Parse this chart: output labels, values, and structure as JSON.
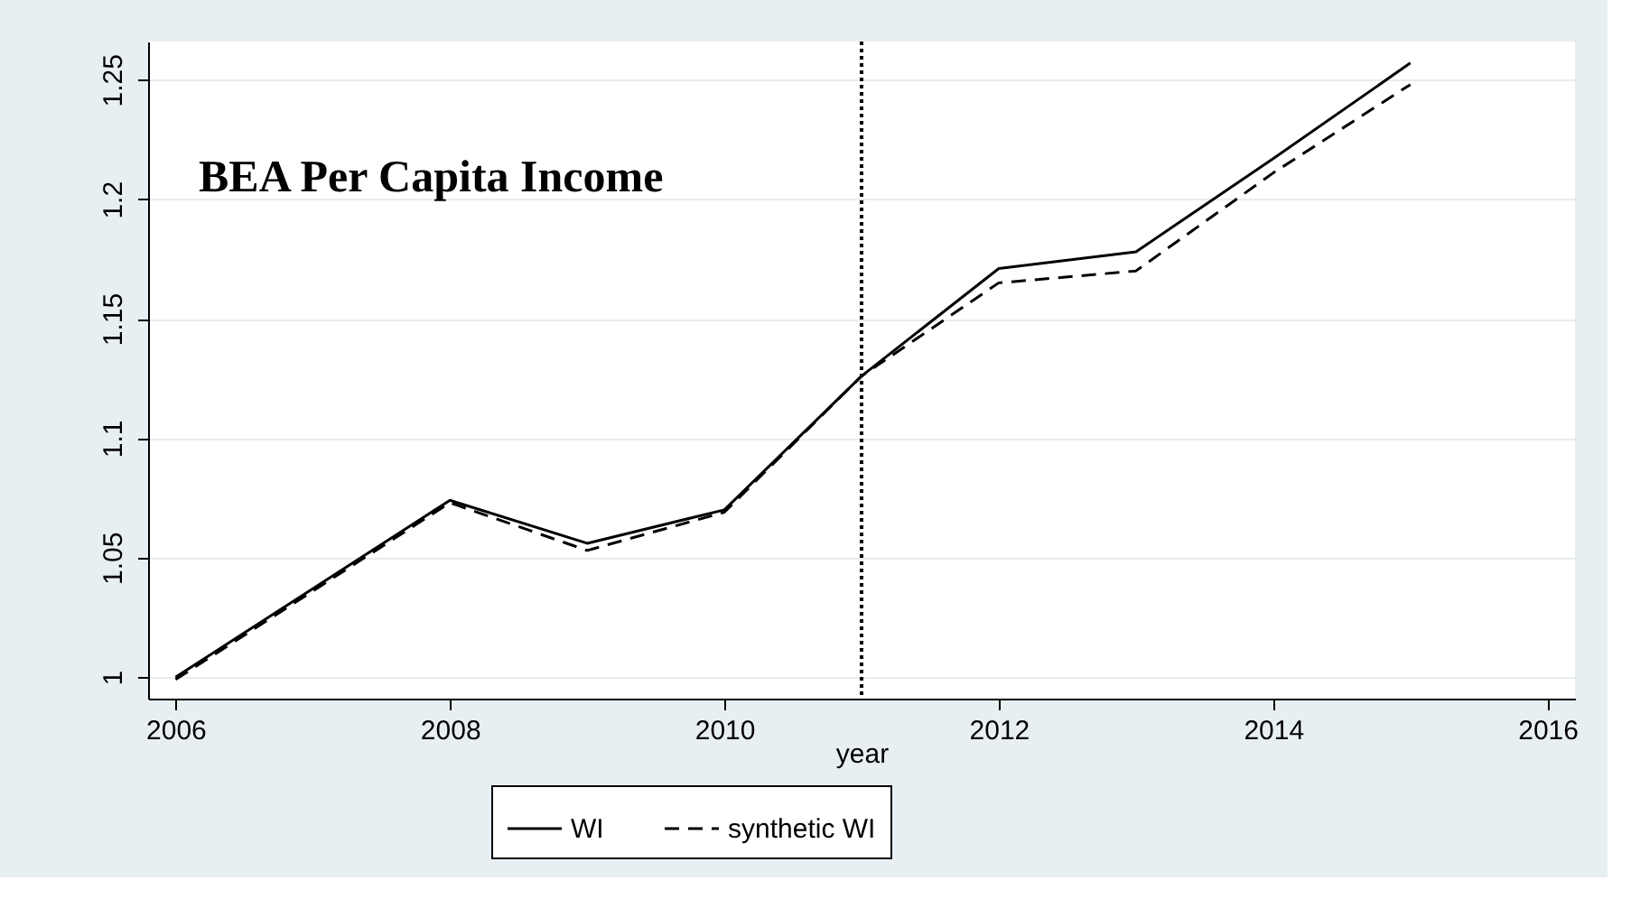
{
  "chart_data": {
    "type": "line",
    "title": "BEA Per Capita Income",
    "xlabel": "year",
    "x": [
      2006,
      2007,
      2008,
      2009,
      2010,
      2011,
      2012,
      2013,
      2014,
      2015
    ],
    "series": [
      {
        "name": "WI",
        "color": "#000000",
        "line_style": "solid",
        "values": [
          1.0,
          1.037,
          1.074,
          1.056,
          1.07,
          1.126,
          1.171,
          1.178,
          1.217,
          1.257
        ]
      },
      {
        "name": "synthetic WI",
        "color": "#000000",
        "line_style": "dashed",
        "values": [
          0.999,
          1.036,
          1.073,
          1.053,
          1.069,
          1.126,
          1.165,
          1.17,
          1.211,
          1.248
        ]
      }
    ],
    "xlim": [
      2005.8,
      2016.2
    ],
    "xticks": [
      2006,
      2008,
      2010,
      2012,
      2014,
      2016
    ],
    "ylim": [
      0.991,
      1.266
    ],
    "yticks": [
      1,
      1.05,
      1.1,
      1.15,
      1.2,
      1.25
    ],
    "ref_lines": [
      {
        "axis": "x",
        "value": 2011,
        "line_style": "dotted",
        "color": "#000000"
      }
    ],
    "grid": "y",
    "legend": "bottom",
    "marker": "none"
  }
}
